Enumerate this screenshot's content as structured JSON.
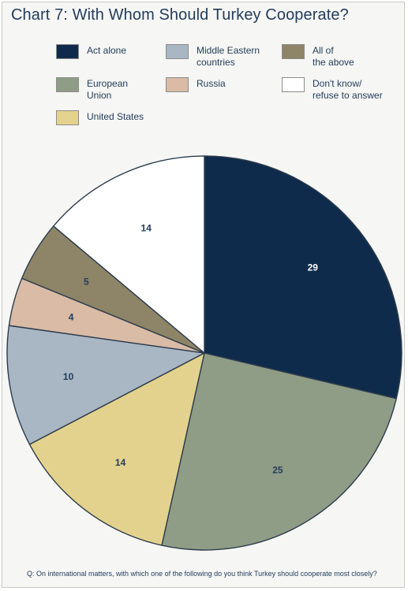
{
  "chart_data": {
    "type": "pie",
    "title": "Chart 7: With Whom Should Turkey Cooperate?",
    "note": "Q: On international matters, with which one of the following do you think Turkey should cooperate most closely?",
    "legend": [
      {
        "label": "Act alone",
        "color": "#0f2b4b"
      },
      {
        "label": "Middle Eastern\ncountries",
        "color": "#a8b7c3"
      },
      {
        "label": "All of\nthe above",
        "color": "#8e8467"
      },
      {
        "label": "European\nUnion",
        "color": "#8f9d86"
      },
      {
        "label": "Russia",
        "color": "#d9bba6"
      },
      {
        "label": "Don't know/\nrefuse to answer",
        "color": "#ffffff"
      },
      {
        "label": "United States",
        "color": "#e3d28e"
      }
    ],
    "slices": [
      {
        "label": "Act alone",
        "value": 29,
        "color": "#0f2b4b",
        "text_color": "#ffffff"
      },
      {
        "label": "European Union",
        "value": 25,
        "color": "#8f9d86",
        "text_color": "#233d5c"
      },
      {
        "label": "United States",
        "value": 14,
        "color": "#e3d28e",
        "text_color": "#233d5c"
      },
      {
        "label": "Middle Eastern countries",
        "value": 10,
        "color": "#a8b7c3",
        "text_color": "#233d5c"
      },
      {
        "label": "Russia",
        "value": 4,
        "color": "#d9bba6",
        "text_color": "#233d5c"
      },
      {
        "label": "All of the above",
        "value": 5,
        "color": "#8e8467",
        "text_color": "#233d5c"
      },
      {
        "label": "Don't know/refuse to answer",
        "value": 14,
        "color": "#ffffff",
        "text_color": "#233d5c"
      }
    ]
  }
}
